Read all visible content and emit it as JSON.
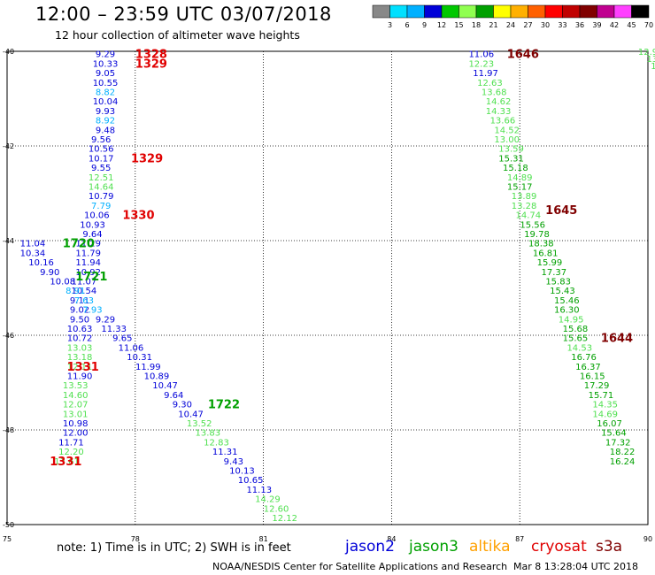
{
  "title": "12:00 – 23:59 UTC 03/07/2018",
  "subtitle": "12 hour collection of altimeter wave heights",
  "colorbar": {
    "colors": [
      "#888888",
      "#00e0ff",
      "#00b0ff",
      "#0000d8",
      "#00c800",
      "#90ff50",
      "#00a000",
      "#ffff00",
      "#ffb000",
      "#ff6000",
      "#ff0000",
      "#c00000",
      "#800000",
      "#c00090",
      "#ff40ff",
      "#000000"
    ],
    "labels": [
      "3",
      "6",
      "9",
      "12",
      "15",
      "18",
      "21",
      "24",
      "27",
      "30",
      "33",
      "36",
      "39",
      "42",
      "45",
      "70",
      "(ft)"
    ]
  },
  "note": "note:  1) Time is in UTC; 2) SWH is in feet",
  "satellites": [
    {
      "name": "jason2",
      "color": "#0000d8"
    },
    {
      "name": "jason3",
      "color": "#00a000"
    },
    {
      "name": "altika",
      "color": "#ffa000"
    },
    {
      "name": "cryosat",
      "color": "#e00000"
    },
    {
      "name": "s3a",
      "color": "#800000"
    }
  ],
  "credit": "NOAA/NESDIS Center for Satellite Applications and Research",
  "credit_date": "Mar  8 13:28:04 UTC 2018",
  "chart_data": {
    "type": "scatter",
    "title": "12:00 – 23:59 UTC 03/07/2018",
    "subtitle": "12 hour collection of altimeter wave heights",
    "xlim": [
      75,
      90
    ],
    "ylim": [
      -50,
      -40
    ],
    "x_ticks": [
      "75",
      "78",
      "81",
      "84",
      "87",
      "90"
    ],
    "y_ticks": [
      "-40",
      "-42",
      "-44",
      "-46",
      "-48",
      "-50"
    ],
    "grid": true,
    "series": [
      {
        "name": "jason2",
        "label_color": "#0000d8",
        "points": [
          {
            "x": 77.3,
            "y": -40.05,
            "v": "9.29",
            "c": "#0000d8"
          },
          {
            "x": 77.3,
            "y": -40.25,
            "v": "10.33",
            "c": "#0000d8"
          },
          {
            "x": 77.3,
            "y": -40.45,
            "v": "9.05",
            "c": "#0000d8"
          },
          {
            "x": 77.3,
            "y": -40.65,
            "v": "10.55",
            "c": "#0000d8"
          },
          {
            "x": 77.3,
            "y": -40.85,
            "v": "8.82",
            "c": "#00b0ff"
          },
          {
            "x": 77.3,
            "y": -41.05,
            "v": "10.04",
            "c": "#0000d8"
          },
          {
            "x": 77.3,
            "y": -41.25,
            "v": "9.93",
            "c": "#0000d8"
          },
          {
            "x": 77.3,
            "y": -41.45,
            "v": "8.92",
            "c": "#00b0ff"
          },
          {
            "x": 77.3,
            "y": -41.65,
            "v": "9.48",
            "c": "#0000d8"
          },
          {
            "x": 77.2,
            "y": -41.85,
            "v": "9.56",
            "c": "#0000d8"
          },
          {
            "x": 77.2,
            "y": -42.05,
            "v": "10.56",
            "c": "#0000d8"
          },
          {
            "x": 77.2,
            "y": -42.25,
            "v": "10.17",
            "c": "#0000d8"
          },
          {
            "x": 77.2,
            "y": -42.45,
            "v": "9.55",
            "c": "#0000d8"
          },
          {
            "x": 77.2,
            "y": -42.65,
            "v": "12.51",
            "c": "#50e050"
          },
          {
            "x": 77.2,
            "y": -42.85,
            "v": "14.64",
            "c": "#50e050"
          },
          {
            "x": 77.2,
            "y": -43.05,
            "v": "10.79",
            "c": "#0000d8"
          },
          {
            "x": 77.2,
            "y": -43.25,
            "v": "7.79",
            "c": "#00b0ff"
          },
          {
            "x": 77.1,
            "y": -43.45,
            "v": "10.06",
            "c": "#0000d8"
          },
          {
            "x": 77.0,
            "y": -43.65,
            "v": "10.93",
            "c": "#0000d8"
          },
          {
            "x": 77.0,
            "y": -43.85,
            "v": "9.64",
            "c": "#0000d8"
          },
          {
            "x": 76.9,
            "y": -44.05,
            "v": "11.29",
            "c": "#0000d8"
          },
          {
            "x": 76.9,
            "y": -44.25,
            "v": "11.79",
            "c": "#0000d8"
          },
          {
            "x": 76.9,
            "y": -44.45,
            "v": "11.94",
            "c": "#0000d8"
          },
          {
            "x": 76.9,
            "y": -44.65,
            "v": "10.92",
            "c": "#0000d8"
          },
          {
            "x": 76.8,
            "y": -44.85,
            "v": "11.07",
            "c": "#0000d8"
          },
          {
            "x": 76.8,
            "y": -45.05,
            "v": "10.54",
            "c": "#0000d8"
          },
          {
            "x": 76.7,
            "y": -45.25,
            "v": "9.11",
            "c": "#0000d8"
          },
          {
            "x": 76.7,
            "y": -45.45,
            "v": "9.02",
            "c": "#0000d8"
          },
          {
            "x": 76.7,
            "y": -45.65,
            "v": "9.50",
            "c": "#0000d8"
          },
          {
            "x": 76.7,
            "y": -45.85,
            "v": "10.63",
            "c": "#0000d8"
          },
          {
            "x": 76.7,
            "y": -46.05,
            "v": "10.72",
            "c": "#0000d8"
          },
          {
            "x": 76.7,
            "y": -46.25,
            "v": "13.03",
            "c": "#50e050"
          },
          {
            "x": 76.7,
            "y": -46.45,
            "v": "13.18",
            "c": "#50e050"
          },
          {
            "x": 76.7,
            "y": -46.65,
            "v": "12.11",
            "c": "#50e050"
          },
          {
            "x": 76.7,
            "y": -46.85,
            "v": "11.90",
            "c": "#0000d8"
          },
          {
            "x": 76.6,
            "y": -47.05,
            "v": "13.53",
            "c": "#50e050"
          },
          {
            "x": 76.6,
            "y": -47.25,
            "v": "14.60",
            "c": "#50e050"
          },
          {
            "x": 76.6,
            "y": -47.45,
            "v": "12.07",
            "c": "#50e050"
          },
          {
            "x": 76.6,
            "y": -47.65,
            "v": "13.01",
            "c": "#50e050"
          },
          {
            "x": 76.6,
            "y": -47.85,
            "v": "10.98",
            "c": "#0000d8"
          },
          {
            "x": 76.6,
            "y": -48.05,
            "v": "12.00",
            "c": "#0000d8"
          },
          {
            "x": 76.5,
            "y": -48.25,
            "v": "11.71",
            "c": "#0000d8"
          },
          {
            "x": 76.5,
            "y": -48.45,
            "v": "12.20",
            "c": "#50e050"
          },
          {
            "x": 76.4,
            "y": -48.65,
            "v": "13.61",
            "c": "#50e050"
          }
        ]
      },
      {
        "name": "jason3",
        "label_color": "#00a000",
        "points": [
          {
            "x": 75.6,
            "y": -44.05,
            "v": "11.04",
            "c": "#0000d8"
          },
          {
            "x": 75.6,
            "y": -44.25,
            "v": "10.34",
            "c": "#0000d8"
          },
          {
            "x": 75.8,
            "y": -44.45,
            "v": "10.16",
            "c": "#0000d8"
          },
          {
            "x": 76.0,
            "y": -44.65,
            "v": "9.90",
            "c": "#0000d8"
          },
          {
            "x": 76.3,
            "y": -44.85,
            "v": "10.08",
            "c": "#0000d8"
          },
          {
            "x": 76.6,
            "y": -45.05,
            "v": "8.91",
            "c": "#00b0ff"
          },
          {
            "x": 76.8,
            "y": -45.25,
            "v": "7.63",
            "c": "#00b0ff"
          },
          {
            "x": 77.0,
            "y": -45.45,
            "v": "7.93",
            "c": "#00b0ff"
          },
          {
            "x": 77.3,
            "y": -45.65,
            "v": "9.29",
            "c": "#0000d8"
          },
          {
            "x": 77.5,
            "y": -45.85,
            "v": "11.33",
            "c": "#0000d8"
          },
          {
            "x": 77.7,
            "y": -46.05,
            "v": "9.65",
            "c": "#0000d8"
          },
          {
            "x": 77.9,
            "y": -46.25,
            "v": "11.06",
            "c": "#0000d8"
          },
          {
            "x": 78.1,
            "y": -46.45,
            "v": "10.31",
            "c": "#0000d8"
          },
          {
            "x": 78.3,
            "y": -46.65,
            "v": "11.99",
            "c": "#0000d8"
          },
          {
            "x": 78.5,
            "y": -46.85,
            "v": "10.89",
            "c": "#0000d8"
          },
          {
            "x": 78.7,
            "y": -47.05,
            "v": "10.47",
            "c": "#0000d8"
          },
          {
            "x": 78.9,
            "y": -47.25,
            "v": "9.64",
            "c": "#0000d8"
          },
          {
            "x": 79.1,
            "y": -47.45,
            "v": "9.30",
            "c": "#0000d8"
          },
          {
            "x": 79.3,
            "y": -47.65,
            "v": "10.47",
            "c": "#0000d8"
          },
          {
            "x": 79.5,
            "y": -47.85,
            "v": "13.52",
            "c": "#50e050"
          },
          {
            "x": 79.7,
            "y": -48.05,
            "v": "13.83",
            "c": "#50e050"
          },
          {
            "x": 79.9,
            "y": -48.25,
            "v": "12.83",
            "c": "#50e050"
          },
          {
            "x": 80.1,
            "y": -48.45,
            "v": "11.31",
            "c": "#0000d8"
          },
          {
            "x": 80.3,
            "y": -48.65,
            "v": "9.43",
            "c": "#0000d8"
          },
          {
            "x": 80.5,
            "y": -48.85,
            "v": "10.13",
            "c": "#0000d8"
          },
          {
            "x": 80.7,
            "y": -49.05,
            "v": "10.65",
            "c": "#0000d8"
          },
          {
            "x": 80.9,
            "y": -49.25,
            "v": "11.13",
            "c": "#0000d8"
          },
          {
            "x": 81.1,
            "y": -49.45,
            "v": "14.29",
            "c": "#50e050"
          },
          {
            "x": 81.3,
            "y": -49.65,
            "v": "12.60",
            "c": "#50e050"
          },
          {
            "x": 81.5,
            "y": -49.85,
            "v": "12.12",
            "c": "#50e050"
          }
        ]
      },
      {
        "name": "s3a",
        "label_color": "#800000",
        "points": [
          {
            "x": 86.1,
            "y": -40.05,
            "v": "11.06",
            "c": "#0000d8"
          },
          {
            "x": 86.1,
            "y": -40.25,
            "v": "12.23",
            "c": "#50e050"
          },
          {
            "x": 86.2,
            "y": -40.45,
            "v": "11.97",
            "c": "#0000d8"
          },
          {
            "x": 86.3,
            "y": -40.65,
            "v": "12.63",
            "c": "#50e050"
          },
          {
            "x": 86.4,
            "y": -40.85,
            "v": "13.68",
            "c": "#50e050"
          },
          {
            "x": 86.5,
            "y": -41.05,
            "v": "14.62",
            "c": "#50e050"
          },
          {
            "x": 86.5,
            "y": -41.25,
            "v": "14.33",
            "c": "#50e050"
          },
          {
            "x": 86.6,
            "y": -41.45,
            "v": "13.66",
            "c": "#50e050"
          },
          {
            "x": 86.7,
            "y": -41.65,
            "v": "14.52",
            "c": "#50e050"
          },
          {
            "x": 86.7,
            "y": -41.85,
            "v": "13.00",
            "c": "#50e050"
          },
          {
            "x": 86.8,
            "y": -42.05,
            "v": "13.59",
            "c": "#50e050"
          },
          {
            "x": 86.8,
            "y": -42.25,
            "v": "15.31",
            "c": "#00a000"
          },
          {
            "x": 86.9,
            "y": -42.45,
            "v": "15.18",
            "c": "#00a000"
          },
          {
            "x": 87.0,
            "y": -42.65,
            "v": "14.89",
            "c": "#50e050"
          },
          {
            "x": 87.0,
            "y": -42.85,
            "v": "15.17",
            "c": "#00a000"
          },
          {
            "x": 87.1,
            "y": -43.05,
            "v": "13.89",
            "c": "#50e050"
          },
          {
            "x": 87.1,
            "y": -43.25,
            "v": "13.28",
            "c": "#50e050"
          },
          {
            "x": 87.2,
            "y": -43.45,
            "v": "14.74",
            "c": "#50e050"
          },
          {
            "x": 87.3,
            "y": -43.65,
            "v": "15.56",
            "c": "#00a000"
          },
          {
            "x": 87.4,
            "y": -43.85,
            "v": "19.78",
            "c": "#00a000"
          },
          {
            "x": 87.5,
            "y": -44.05,
            "v": "18.38",
            "c": "#00a000"
          },
          {
            "x": 87.6,
            "y": -44.25,
            "v": "16.81",
            "c": "#00a000"
          },
          {
            "x": 87.7,
            "y": -44.45,
            "v": "15.99",
            "c": "#00a000"
          },
          {
            "x": 87.8,
            "y": -44.65,
            "v": "17.37",
            "c": "#00a000"
          },
          {
            "x": 87.9,
            "y": -44.85,
            "v": "15.83",
            "c": "#00a000"
          },
          {
            "x": 88.0,
            "y": -45.05,
            "v": "15.43",
            "c": "#00a000"
          },
          {
            "x": 88.1,
            "y": -45.25,
            "v": "15.46",
            "c": "#00a000"
          },
          {
            "x": 88.1,
            "y": -45.45,
            "v": "16.30",
            "c": "#00a000"
          },
          {
            "x": 88.2,
            "y": -45.65,
            "v": "14.95",
            "c": "#50e050"
          },
          {
            "x": 88.3,
            "y": -45.85,
            "v": "15.68",
            "c": "#00a000"
          },
          {
            "x": 88.3,
            "y": -46.05,
            "v": "15.65",
            "c": "#00a000"
          },
          {
            "x": 88.4,
            "y": -46.25,
            "v": "14.53",
            "c": "#50e050"
          },
          {
            "x": 88.5,
            "y": -46.45,
            "v": "16.76",
            "c": "#00a000"
          },
          {
            "x": 88.6,
            "y": -46.65,
            "v": "16.37",
            "c": "#00a000"
          },
          {
            "x": 88.7,
            "y": -46.85,
            "v": "16.15",
            "c": "#00a000"
          },
          {
            "x": 88.8,
            "y": -47.05,
            "v": "17.29",
            "c": "#00a000"
          },
          {
            "x": 88.9,
            "y": -47.25,
            "v": "15.71",
            "c": "#00a000"
          },
          {
            "x": 89.0,
            "y": -47.45,
            "v": "14.35",
            "c": "#50e050"
          },
          {
            "x": 89.0,
            "y": -47.65,
            "v": "14.69",
            "c": "#50e050"
          },
          {
            "x": 89.1,
            "y": -47.85,
            "v": "16.07",
            "c": "#00a000"
          },
          {
            "x": 89.2,
            "y": -48.05,
            "v": "15.64",
            "c": "#00a000"
          },
          {
            "x": 89.3,
            "y": -48.25,
            "v": "17.32",
            "c": "#00a000"
          },
          {
            "x": 89.4,
            "y": -48.45,
            "v": "18.22",
            "c": "#00a000"
          },
          {
            "x": 89.4,
            "y": -48.65,
            "v": "16.24",
            "c": "#00a000"
          }
        ]
      },
      {
        "name": "partial-track-right-edge",
        "points": [
          {
            "x": 90.0,
            "y": -40.0,
            "v": "12.9",
            "c": "#50e050"
          },
          {
            "x": 90.1,
            "y": -40.15,
            "v": "13",
            "c": "#50e050"
          },
          {
            "x": 90.2,
            "y": -40.3,
            "v": "13",
            "c": "#50e050"
          }
        ]
      }
    ],
    "time_labels": [
      {
        "x": 78.0,
        "y": -40.05,
        "t": "1328",
        "c": "#e00000"
      },
      {
        "x": 78.0,
        "y": -40.25,
        "t": "1329",
        "c": "#e00000"
      },
      {
        "x": 77.9,
        "y": -42.25,
        "t": "1329",
        "c": "#e00000"
      },
      {
        "x": 77.7,
        "y": -43.45,
        "t": "1330",
        "c": "#e00000"
      },
      {
        "x": 76.4,
        "y": -46.65,
        "t": "1331",
        "c": "#e00000"
      },
      {
        "x": 76.0,
        "y": -48.65,
        "t": "1331",
        "c": "#e00000"
      },
      {
        "x": 76.3,
        "y": -44.05,
        "t": "1720",
        "c": "#00a000"
      },
      {
        "x": 76.6,
        "y": -44.75,
        "t": "1721",
        "c": "#00a000"
      },
      {
        "x": 79.7,
        "y": -47.45,
        "t": "1722",
        "c": "#00a000"
      },
      {
        "x": 86.7,
        "y": -40.05,
        "t": "1646",
        "c": "#800000"
      },
      {
        "x": 87.6,
        "y": -43.35,
        "t": "1645",
        "c": "#800000"
      },
      {
        "x": 88.9,
        "y": -46.05,
        "t": "1644",
        "c": "#800000"
      }
    ]
  }
}
